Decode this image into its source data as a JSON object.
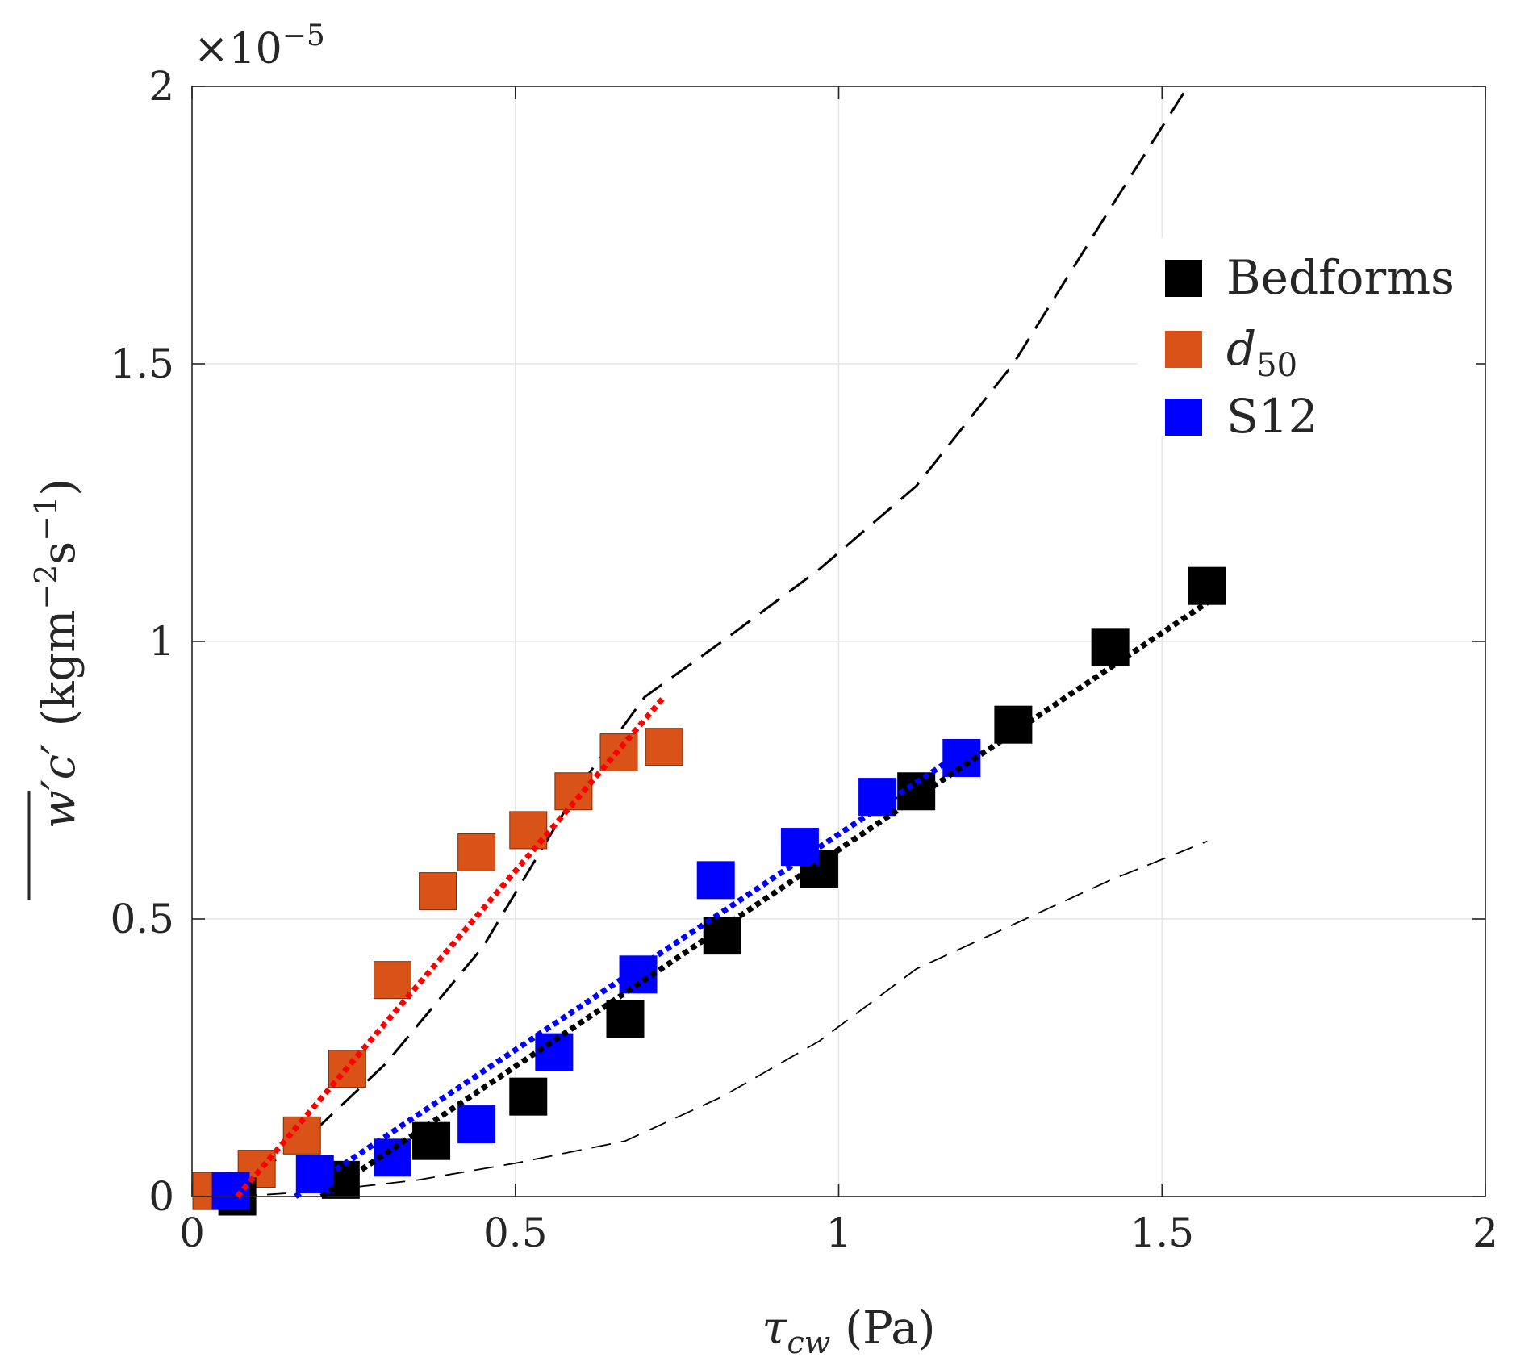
{
  "chart_data": {
    "type": "scatter",
    "title": "",
    "xlabel": "τcw (Pa)",
    "xlabel_parts": {
      "symbol": "τ",
      "subscript": "cw",
      "unit": "(Pa)"
    },
    "ylabel": "w′c′ (kgm−2s−1)",
    "ylabel_parts": {
      "symbol": "w′c′",
      "unit_open": "(kgm",
      "exp1": "−2",
      "s": "s",
      "exp2": "−1",
      "unit_close": ")"
    },
    "y_multiplier": {
      "text": "×10",
      "exponent": "−5"
    },
    "xlim": [
      0,
      2
    ],
    "ylim": [
      0,
      2
    ],
    "xticks": [
      0,
      0.5,
      1,
      1.5,
      2
    ],
    "xtick_labels": [
      "0",
      "0.5",
      "1",
      "1.5",
      "2"
    ],
    "yticks": [
      0,
      0.5,
      1,
      1.5,
      2
    ],
    "ytick_labels": [
      "0",
      "0.5",
      "1",
      "1.5",
      "2"
    ],
    "grid": true,
    "legend_position": "top-right",
    "series": [
      {
        "name": "Bedforms",
        "legend_label": "Bedforms",
        "marker": "square",
        "color": "#000000",
        "x": [
          0.07,
          0.23,
          0.37,
          0.52,
          0.67,
          0.82,
          0.97,
          1.12,
          1.27,
          1.42,
          1.57
        ],
        "y": [
          0.0,
          0.03,
          0.1,
          0.18,
          0.32,
          0.47,
          0.59,
          0.73,
          0.85,
          0.99,
          1.1
        ]
      },
      {
        "name": "d50",
        "legend_label": "d",
        "legend_subscript": "50",
        "marker": "square",
        "color": "#D95319",
        "x": [
          0.03,
          0.1,
          0.17,
          0.24,
          0.31,
          0.38,
          0.44,
          0.52,
          0.59,
          0.66,
          0.73
        ],
        "y": [
          0.01,
          0.05,
          0.11,
          0.23,
          0.39,
          0.55,
          0.62,
          0.66,
          0.73,
          0.8,
          0.81
        ]
      },
      {
        "name": "S12",
        "legend_label": "S12",
        "marker": "square",
        "color": "#0000FF",
        "x": [
          0.06,
          0.19,
          0.31,
          0.44,
          0.56,
          0.69,
          0.81,
          0.94,
          1.06,
          1.19
        ],
        "y": [
          0.01,
          0.04,
          0.07,
          0.13,
          0.26,
          0.4,
          0.57,
          0.63,
          0.72,
          0.79
        ]
      }
    ],
    "fit_lines": [
      {
        "name": "bedforms-fit",
        "color": "#000000",
        "style": "dotted",
        "x": [
          0.2,
          1.57
        ],
        "y": [
          0.0,
          1.07
        ]
      },
      {
        "name": "d50-fit",
        "color": "#FF0000",
        "style": "dotted",
        "x": [
          0.07,
          0.73
        ],
        "y": [
          0.0,
          0.9
        ]
      },
      {
        "name": "s12-fit",
        "color": "#0000FF",
        "style": "dotted",
        "x": [
          0.16,
          1.19
        ],
        "y": [
          0.0,
          0.8
        ]
      }
    ],
    "reference_curves": [
      {
        "name": "upper-dashed-curve",
        "color": "#000000",
        "style": "dashed",
        "x": [
          0.1,
          0.2,
          0.3,
          0.45,
          0.6,
          0.7,
          0.82,
          0.97,
          1.12,
          1.27,
          1.42,
          1.54
        ],
        "y": [
          0.04,
          0.13,
          0.24,
          0.45,
          0.74,
          0.9,
          1.0,
          1.13,
          1.28,
          1.5,
          1.78,
          2.0
        ]
      },
      {
        "name": "lower-dashed-curve",
        "color": "#000000",
        "style": "dashed-thin",
        "x": [
          0.07,
          0.2,
          0.35,
          0.5,
          0.67,
          0.82,
          0.97,
          1.12,
          1.27,
          1.42,
          1.57
        ],
        "y": [
          0.0,
          0.01,
          0.03,
          0.06,
          0.1,
          0.18,
          0.28,
          0.41,
          0.49,
          0.57,
          0.64
        ]
      }
    ]
  }
}
